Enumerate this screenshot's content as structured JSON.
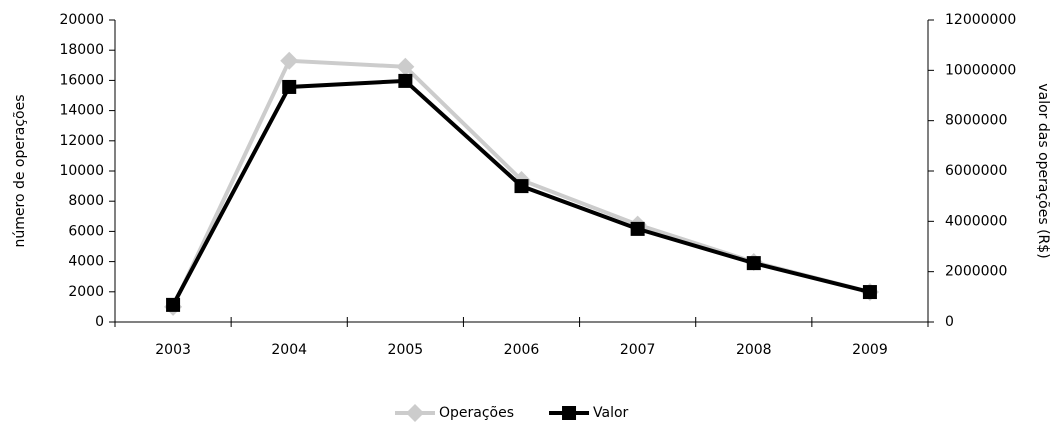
{
  "chart_data": {
    "type": "line",
    "categories": [
      "2003",
      "2004",
      "2005",
      "2006",
      "2007",
      "2008",
      "2009"
    ],
    "y_label": "número de operações",
    "y2_label": "valor das operações (R$)",
    "ylim": [
      0,
      20000
    ],
    "yticks": [
      0,
      2000,
      4000,
      6000,
      8000,
      10000,
      12000,
      14000,
      16000,
      18000,
      20000
    ],
    "y2lim": [
      0,
      12000000
    ],
    "y2ticks": [
      0,
      2000000,
      4000000,
      6000000,
      8000000,
      10000000,
      12000000
    ],
    "grid": false,
    "legend": "bottom",
    "series": [
      {
        "name": "Operações",
        "color": "#cccccc",
        "marker": "diamond",
        "values": [
          1000,
          17300,
          16900,
          9400,
          6450,
          3970,
          1990
        ]
      },
      {
        "name": "Valor",
        "color": "#000000",
        "marker": "square",
        "axis": "y2",
        "values": [
          680000,
          9340000,
          9580000,
          5400000,
          3700000,
          2340000,
          1190000
        ]
      }
    ]
  }
}
